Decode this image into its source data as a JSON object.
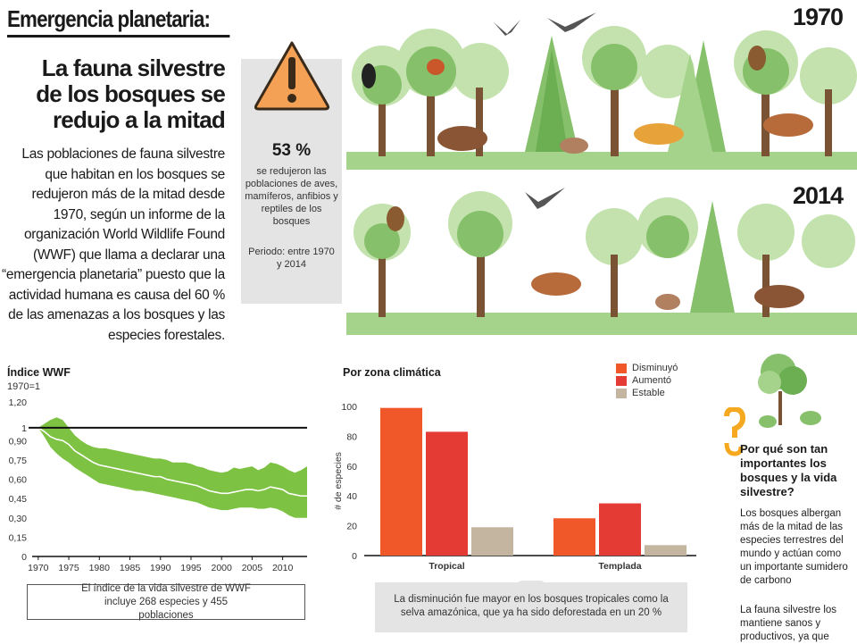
{
  "header": {
    "kicker": "Emergencia planetaria:",
    "headline": "La fauna silvestre de los bosques se redujo a la mitad",
    "body": "Las poblaciones de fauna silvestre que habitan en los bosques se redujeron más de la mitad desde 1970, según un informe de la organización World Wildlife Found (WWF) que llama a declarar una “emergencia planetaria” puesto que la actividad humana es causa del 60 % de las amenazas a los bosques y las especies forestales."
  },
  "alert": {
    "icon": "warning-triangle-icon",
    "percent": "53 %",
    "description": "se redujeron las poblaciones de aves, mamíferos, anfibios y reptiles de los bosques",
    "period": "Periodo: entre 1970 y 2014"
  },
  "illustration": {
    "year_top": "1970",
    "year_bottom": "2014"
  },
  "colors": {
    "decreased": "#f0582a",
    "increased": "#e53b35",
    "stable": "#c4b5a0",
    "band": "#7dc242",
    "warning": "#f4a155",
    "question": "#f6a81f"
  },
  "chart_data": [
    {
      "type": "area",
      "title": "Índice WWF",
      "subtitle": "1970=1",
      "note": "El índice de la vida silvestre de WWF incluye 268 especies y 455 poblaciones",
      "x_ticks": [
        1970,
        1975,
        1980,
        1985,
        1990,
        1995,
        2000,
        2005,
        2010
      ],
      "y_ticks": [
        0,
        0.15,
        0.3,
        0.45,
        0.6,
        0.75,
        0.9,
        1,
        1.2
      ],
      "y_tick_labels": [
        "0",
        "0,15",
        "0,30",
        "0,45",
        "0,60",
        "0,75",
        "0,90",
        "1",
        "1,20"
      ],
      "xlim": [
        1969,
        2014
      ],
      "ylim": [
        0,
        1.2
      ],
      "reference_line": 1,
      "x": [
        1970,
        1971,
        1972,
        1973,
        1974,
        1975,
        1976,
        1977,
        1978,
        1979,
        1980,
        1981,
        1982,
        1983,
        1984,
        1985,
        1986,
        1987,
        1988,
        1989,
        1990,
        1991,
        1992,
        1993,
        1994,
        1995,
        1996,
        1997,
        1998,
        1999,
        2000,
        2001,
        2002,
        2003,
        2004,
        2005,
        2006,
        2007,
        2008,
        2009,
        2010,
        2011,
        2012,
        2013,
        2014
      ],
      "mean": [
        1.0,
        0.97,
        0.93,
        0.91,
        0.9,
        0.87,
        0.82,
        0.79,
        0.76,
        0.73,
        0.71,
        0.7,
        0.69,
        0.68,
        0.67,
        0.66,
        0.65,
        0.64,
        0.63,
        0.62,
        0.62,
        0.6,
        0.59,
        0.58,
        0.57,
        0.56,
        0.55,
        0.53,
        0.51,
        0.5,
        0.49,
        0.49,
        0.5,
        0.51,
        0.52,
        0.52,
        0.51,
        0.52,
        0.54,
        0.53,
        0.52,
        0.49,
        0.48,
        0.47,
        0.47
      ],
      "upper": [
        1.0,
        1.03,
        1.06,
        1.08,
        1.06,
        1.0,
        0.94,
        0.9,
        0.87,
        0.85,
        0.84,
        0.84,
        0.83,
        0.82,
        0.81,
        0.8,
        0.79,
        0.78,
        0.77,
        0.76,
        0.76,
        0.75,
        0.73,
        0.73,
        0.73,
        0.72,
        0.7,
        0.69,
        0.67,
        0.66,
        0.65,
        0.66,
        0.69,
        0.68,
        0.69,
        0.7,
        0.67,
        0.69,
        0.73,
        0.72,
        0.7,
        0.67,
        0.65,
        0.67,
        0.7
      ],
      "lower": [
        1.0,
        0.93,
        0.85,
        0.8,
        0.76,
        0.73,
        0.69,
        0.66,
        0.63,
        0.6,
        0.57,
        0.56,
        0.55,
        0.54,
        0.53,
        0.52,
        0.51,
        0.51,
        0.5,
        0.49,
        0.48,
        0.47,
        0.46,
        0.45,
        0.44,
        0.43,
        0.42,
        0.4,
        0.38,
        0.37,
        0.36,
        0.36,
        0.37,
        0.38,
        0.38,
        0.38,
        0.37,
        0.37,
        0.38,
        0.37,
        0.35,
        0.32,
        0.3,
        0.3,
        0.3
      ]
    },
    {
      "type": "bar",
      "title": "Por zona climática",
      "ylabel": "# de especies",
      "categories": [
        "Tropical",
        "Templada"
      ],
      "ylim": [
        0,
        100
      ],
      "y_ticks": [
        0,
        20,
        40,
        60,
        80,
        100
      ],
      "series": [
        {
          "name": "Disminuyó",
          "values": [
            99,
            25
          ]
        },
        {
          "name": "Aumentó",
          "values": [
            83,
            35
          ]
        },
        {
          "name": "Estable",
          "values": [
            19,
            7
          ]
        }
      ],
      "note": "La disminución fue mayor en los bosques tropicales como la selva amazónica, que ya ha sido deforestada en un 20 %"
    }
  ],
  "sidebar": {
    "question": "Por qué son tan importantes los bosques y la vida silvestre?",
    "paragraph1": "Los bosques albergan más de la mitad de las especies terrestres del mundo y actúan como un importante sumidero de carbono",
    "paragraph2": "La fauna silvestre los mantiene sanos y productivos, ya que"
  }
}
